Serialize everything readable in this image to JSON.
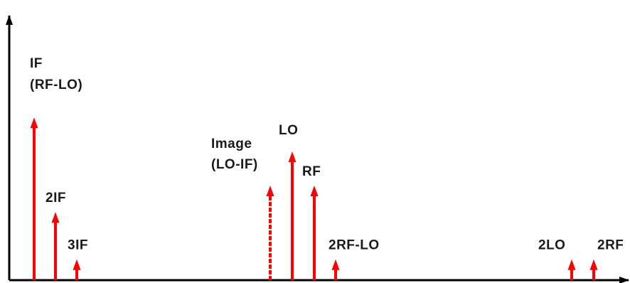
{
  "diagram": {
    "axis_color": "#000000",
    "line_color": "#ff0000",
    "spectral_lines": [
      {
        "id": "if",
        "label": [
          "IF",
          "(RF-LO)"
        ],
        "relative_amplitude": 0.86,
        "style": "solid"
      },
      {
        "id": "2if",
        "label": [
          "2IF"
        ],
        "relative_amplitude": 0.36,
        "style": "solid"
      },
      {
        "id": "3if",
        "label": [
          "3IF"
        ],
        "relative_amplitude": 0.11,
        "style": "solid"
      },
      {
        "id": "image",
        "label": [
          "Image",
          "(LO-IF)"
        ],
        "relative_amplitude": 0.5,
        "style": "dashed"
      },
      {
        "id": "lo",
        "label": [
          "LO"
        ],
        "relative_amplitude": 0.68,
        "style": "solid"
      },
      {
        "id": "rf",
        "label": [
          "RF"
        ],
        "relative_amplitude": 0.5,
        "style": "solid"
      },
      {
        "id": "2rf-lo",
        "label": [
          "2RF-LO"
        ],
        "relative_amplitude": 0.11,
        "style": "solid"
      },
      {
        "id": "2lo",
        "label": [
          "2LO"
        ],
        "relative_amplitude": 0.11,
        "style": "solid"
      },
      {
        "id": "2rf",
        "label": [
          "2RF"
        ],
        "relative_amplitude": 0.11,
        "style": "solid"
      }
    ]
  }
}
